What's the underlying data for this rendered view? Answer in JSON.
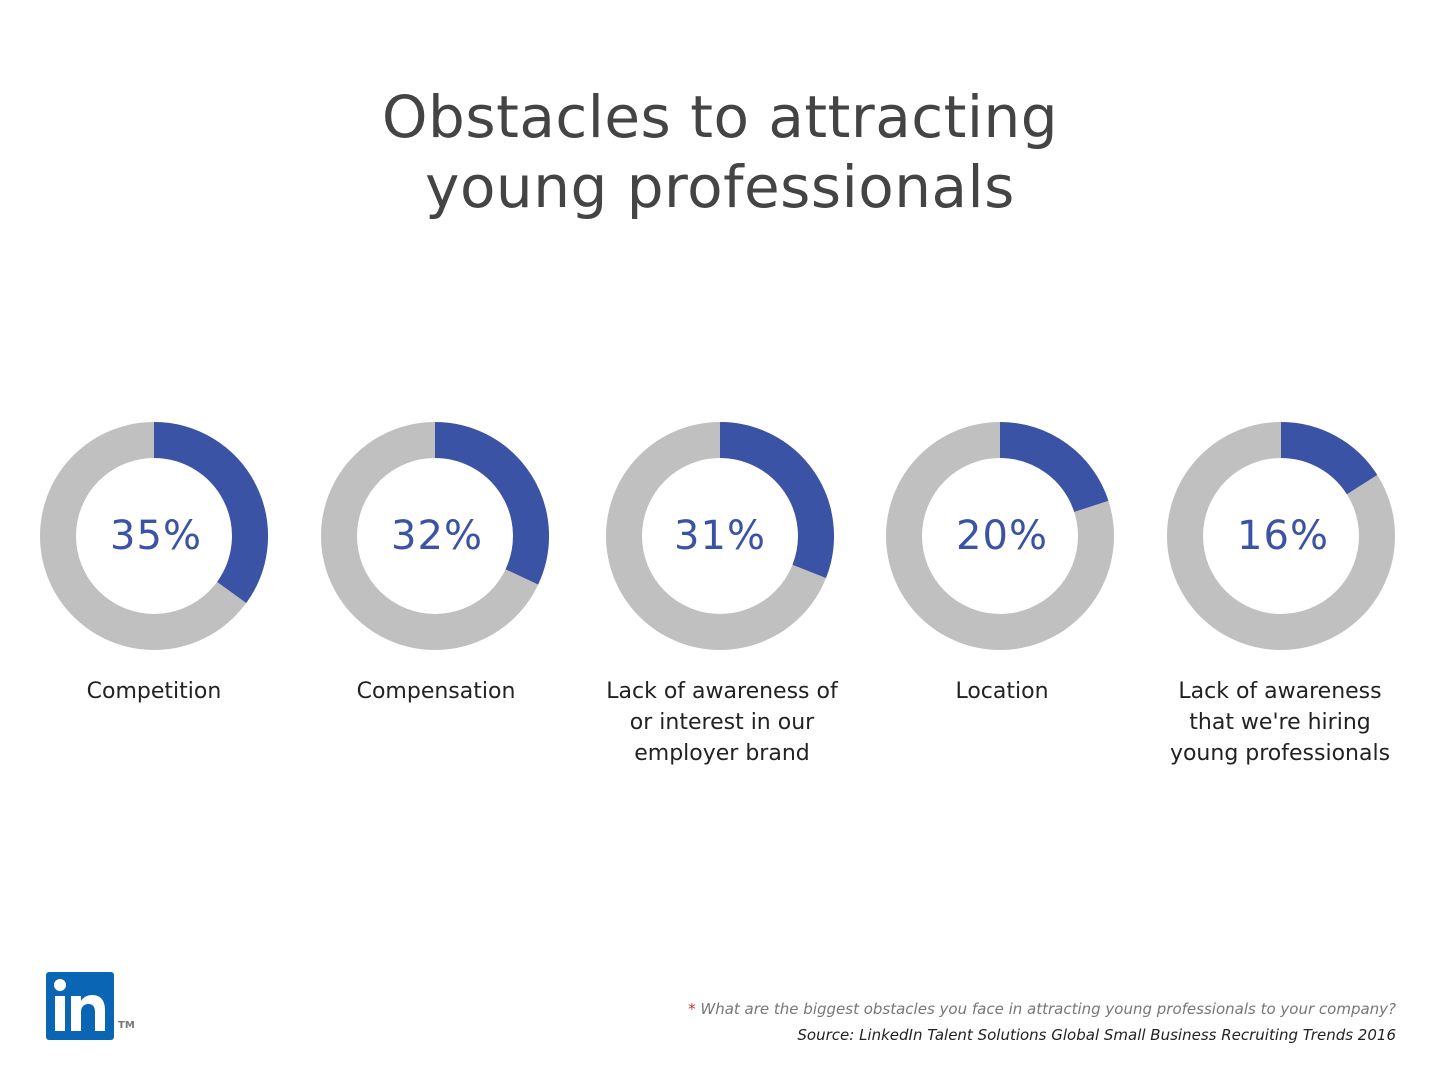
{
  "title": {
    "line1": "Obstacles to attracting",
    "line2": "young professionals"
  },
  "chart_data": {
    "type": "donut",
    "title": "Obstacles to attracting young professionals",
    "colors": {
      "value": "#3a53a4",
      "remainder": "#c0c0c0"
    },
    "items": [
      {
        "label": "Competition",
        "value": 35,
        "display": "35%"
      },
      {
        "label": "Compensation",
        "value": 32,
        "display": "32%"
      },
      {
        "label": "Lack of awareness of or interest in our employer brand",
        "value": 31,
        "display": "31%"
      },
      {
        "label": "Location",
        "value": 20,
        "display": "20%"
      },
      {
        "label": "Lack of awareness that we're hiring young professionals",
        "value": 16,
        "display": "16%"
      }
    ]
  },
  "labels": [
    {
      "line1": "Competition",
      "line2": "",
      "line3": ""
    },
    {
      "line1": "Compensation",
      "line2": "",
      "line3": ""
    },
    {
      "line1": "Lack of awareness of",
      "line2": "or interest in our",
      "line3": "employer brand"
    },
    {
      "line1": "Location",
      "line2": "",
      "line3": ""
    },
    {
      "line1": "Lack of awareness",
      "line2": "that we're hiring",
      "line3": "young professionals"
    }
  ],
  "footer": {
    "question_star": "*",
    "question": "What are the biggest obstacles you face in attracting young professionals to your company?",
    "source": "Source: LinkedIn Talent Solutions Global Small Business Recruiting Trends 2016"
  },
  "logo": {
    "text": "in",
    "trademark": "TM",
    "color": "#0a66b4"
  }
}
